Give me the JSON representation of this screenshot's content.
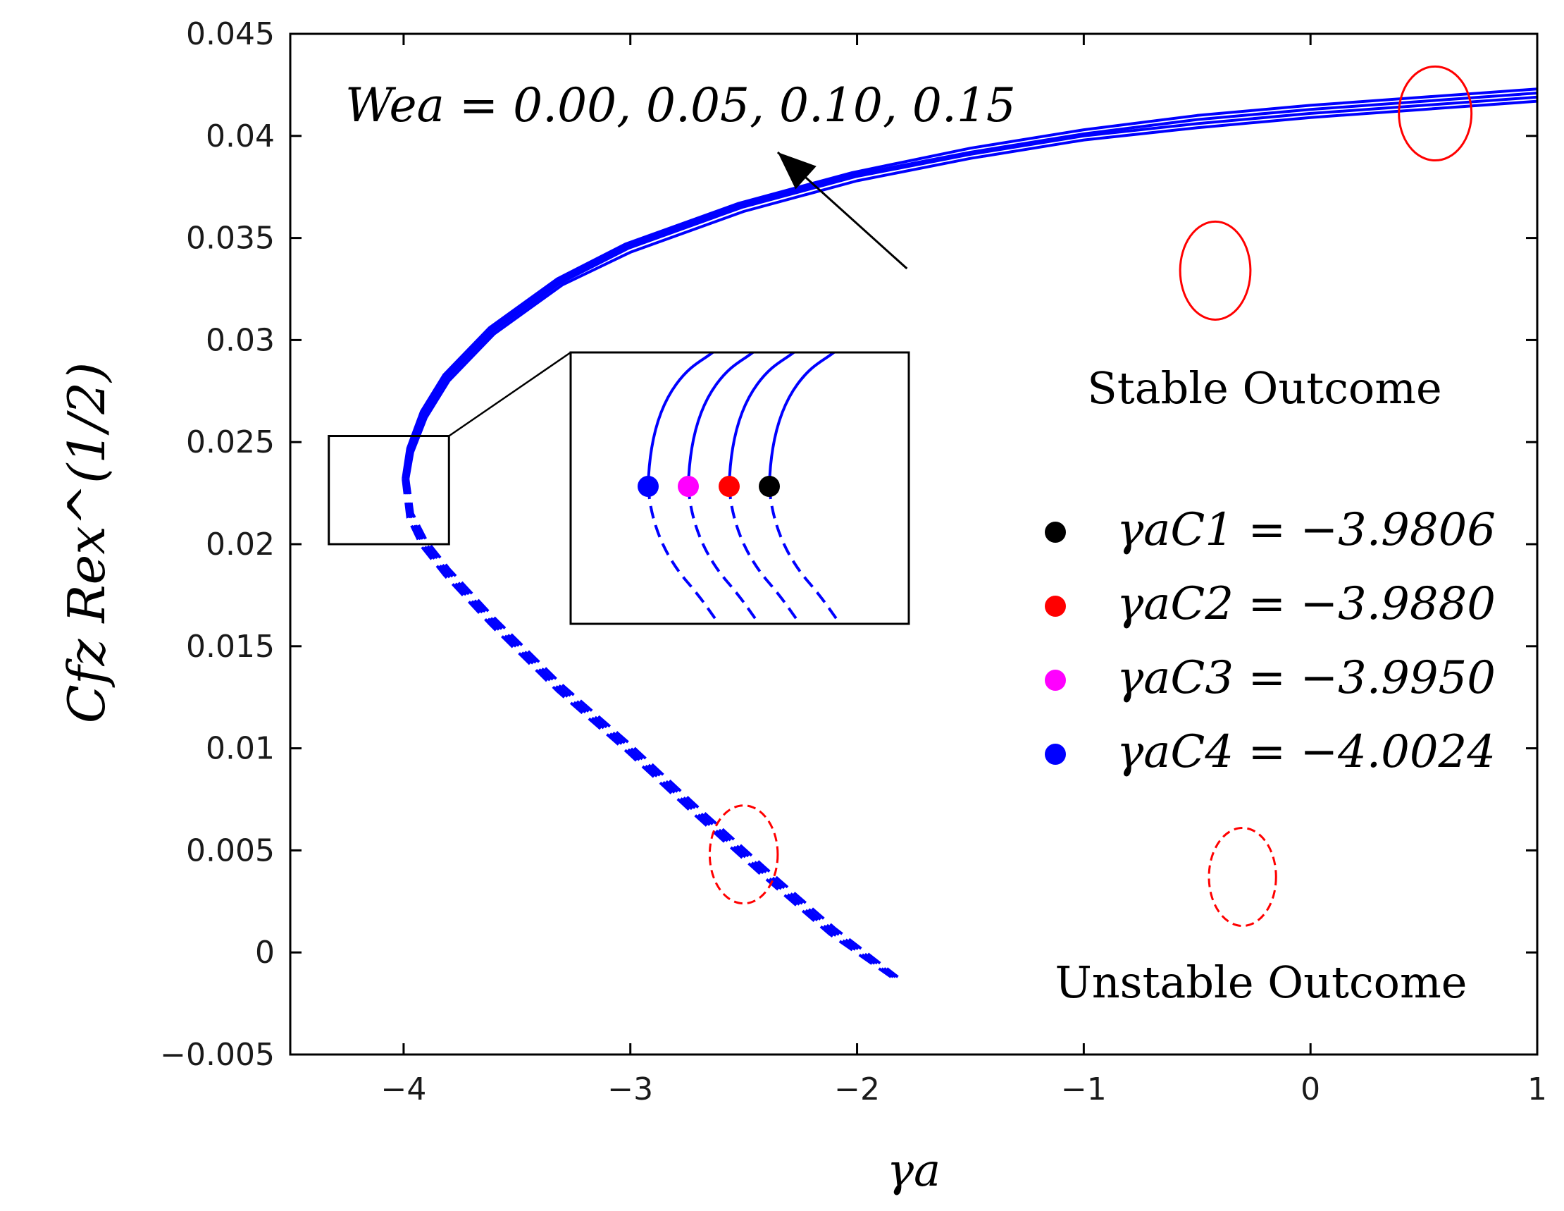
{
  "chart_data": {
    "type": "line",
    "title": "",
    "xlabel": "γa",
    "ylabel": "Cfz Rex^(1/2)",
    "xlim": [
      -4.5,
      1
    ],
    "ylim": [
      -0.005,
      0.045
    ],
    "x_ticks": [
      -4,
      -3,
      -2,
      -1,
      0,
      1
    ],
    "x_tick_labels": [
      "−4",
      "−3",
      "−2",
      "−1",
      "0",
      "1"
    ],
    "y_ticks": [
      -0.005,
      0,
      0.005,
      0.01,
      0.015,
      0.02,
      0.025,
      0.03,
      0.035,
      0.04,
      0.045
    ],
    "y_tick_labels": [
      "−0.005",
      "0",
      "0.005",
      "0.01",
      "0.015",
      "0.02",
      "0.025",
      "0.03",
      "0.035",
      "0.04",
      "0.045"
    ],
    "grid": false,
    "series": [
      {
        "name": "We_a = 0.00",
        "color": "#0000ff",
        "critical_point": {
          "x": -3.9806,
          "y": 0.0232
        },
        "upper_branch_style": "solid",
        "lower_branch_style": "dashed",
        "upper_branch": [
          [
            -3.9806,
            0.0232
          ],
          [
            -3.96,
            0.0245
          ],
          [
            -3.9,
            0.0262
          ],
          [
            -3.8,
            0.028
          ],
          [
            -3.6,
            0.0303
          ],
          [
            -3.3,
            0.0327
          ],
          [
            -3.0,
            0.0343
          ],
          [
            -2.5,
            0.0363
          ],
          [
            -2.0,
            0.0378
          ],
          [
            -1.5,
            0.0389
          ],
          [
            -1.0,
            0.0398
          ],
          [
            -0.5,
            0.0404
          ],
          [
            0.0,
            0.0409
          ],
          [
            0.5,
            0.0413
          ],
          [
            1.0,
            0.0417
          ]
        ],
        "lower_branch": [
          [
            -3.9806,
            0.0232
          ],
          [
            -3.96,
            0.0215
          ],
          [
            -3.9,
            0.0202
          ],
          [
            -3.8,
            0.0188
          ],
          [
            -3.6,
            0.0164
          ],
          [
            -3.3,
            0.0131
          ],
          [
            -3.0,
            0.0102
          ],
          [
            -2.7,
            0.0071
          ],
          [
            -2.4,
            0.0041
          ],
          [
            -2.1,
            0.0012
          ],
          [
            -1.82,
            -0.0012
          ]
        ]
      },
      {
        "name": "We_a = 0.05",
        "color": "#0000ff",
        "critical_point": {
          "x": -3.988,
          "y": 0.0232
        },
        "upper_branch_style": "solid",
        "lower_branch_style": "dashed",
        "upper_branch": [
          [
            -3.988,
            0.0232
          ],
          [
            -3.968,
            0.0246
          ],
          [
            -3.908,
            0.0263
          ],
          [
            -3.808,
            0.0281
          ],
          [
            -3.608,
            0.0304
          ],
          [
            -3.308,
            0.0328
          ],
          [
            -3.008,
            0.0345
          ],
          [
            -2.508,
            0.0365
          ],
          [
            -2.008,
            0.038
          ],
          [
            -1.5,
            0.0391
          ],
          [
            -1.0,
            0.04
          ],
          [
            -0.5,
            0.0406
          ],
          [
            0.0,
            0.0411
          ],
          [
            0.5,
            0.0415
          ],
          [
            1.0,
            0.0419
          ]
        ],
        "lower_branch": [
          [
            -3.988,
            0.0232
          ],
          [
            -3.968,
            0.0214
          ],
          [
            -3.908,
            0.0201
          ],
          [
            -3.808,
            0.0187
          ],
          [
            -3.608,
            0.0163
          ],
          [
            -3.308,
            0.013
          ],
          [
            -3.008,
            0.0101
          ],
          [
            -2.708,
            0.007
          ],
          [
            -2.408,
            0.004
          ],
          [
            -2.108,
            0.0011
          ],
          [
            -1.83,
            -0.0012
          ]
        ]
      },
      {
        "name": "We_a = 0.10",
        "color": "#0000ff",
        "critical_point": {
          "x": -3.995,
          "y": 0.0232
        },
        "upper_branch_style": "solid",
        "lower_branch_style": "dashed",
        "upper_branch": [
          [
            -3.995,
            0.0232
          ],
          [
            -3.975,
            0.0246
          ],
          [
            -3.915,
            0.0264
          ],
          [
            -3.815,
            0.0282
          ],
          [
            -3.615,
            0.0305
          ],
          [
            -3.315,
            0.0329
          ],
          [
            -3.015,
            0.0346
          ],
          [
            -2.515,
            0.0366
          ],
          [
            -2.015,
            0.0381
          ],
          [
            -1.5,
            0.0392
          ],
          [
            -1.0,
            0.0401
          ],
          [
            -0.5,
            0.0408
          ],
          [
            0.0,
            0.0413
          ],
          [
            0.5,
            0.0417
          ],
          [
            1.0,
            0.0421
          ]
        ],
        "lower_branch": [
          [
            -3.995,
            0.0232
          ],
          [
            -3.975,
            0.0214
          ],
          [
            -3.915,
            0.02
          ],
          [
            -3.815,
            0.0186
          ],
          [
            -3.615,
            0.0162
          ],
          [
            -3.315,
            0.0129
          ],
          [
            -3.015,
            0.01
          ],
          [
            -2.715,
            0.0069
          ],
          [
            -2.415,
            0.0039
          ],
          [
            -2.115,
            0.001
          ],
          [
            -1.84,
            -0.0012
          ]
        ]
      },
      {
        "name": "We_a = 0.15",
        "color": "#0000ff",
        "critical_point": {
          "x": -4.0024,
          "y": 0.0232
        },
        "upper_branch_style": "solid",
        "lower_branch_style": "dashed",
        "upper_branch": [
          [
            -4.0024,
            0.0232
          ],
          [
            -3.982,
            0.0247
          ],
          [
            -3.922,
            0.0265
          ],
          [
            -3.822,
            0.0283
          ],
          [
            -3.622,
            0.0306
          ],
          [
            -3.322,
            0.033
          ],
          [
            -3.022,
            0.0347
          ],
          [
            -2.522,
            0.0367
          ],
          [
            -2.022,
            0.0382
          ],
          [
            -1.5,
            0.0394
          ],
          [
            -1.0,
            0.0403
          ],
          [
            -0.5,
            0.041
          ],
          [
            0.0,
            0.0415
          ],
          [
            0.5,
            0.0419
          ],
          [
            1.0,
            0.0423
          ]
        ],
        "lower_branch": [
          [
            -4.0024,
            0.0232
          ],
          [
            -3.982,
            0.0213
          ],
          [
            -3.922,
            0.0199
          ],
          [
            -3.822,
            0.0185
          ],
          [
            -3.622,
            0.0161
          ],
          [
            -3.322,
            0.0128
          ],
          [
            -3.022,
            0.0099
          ],
          [
            -2.722,
            0.0068
          ],
          [
            -2.422,
            0.0038
          ],
          [
            -2.122,
            0.0009
          ],
          [
            -1.85,
            -0.0012
          ]
        ]
      }
    ],
    "legend": {
      "placement": "center-right",
      "entries": [
        {
          "label": "γaC1 = −3.9806",
          "color": "#000000"
        },
        {
          "label": "γaC2 = −3.9880",
          "color": "#ff0000"
        },
        {
          "label": "γaC3 = −3.9950",
          "color": "#ff00ff"
        },
        {
          "label": "γaC4 = −4.0024",
          "color": "#0000ff"
        }
      ]
    },
    "zoom_box": {
      "xlim": [
        -4.33,
        -3.8
      ],
      "ylim": [
        0.02,
        0.0253
      ]
    },
    "inset": {
      "shows": "zoomed critical points",
      "point_order_left_to_right": [
        "C4",
        "C3",
        "C2",
        "C1"
      ]
    },
    "annotations": {
      "we_label": "Wea = 0.00, 0.05, 0.10, 0.15",
      "arrow": {
        "from": [
          -1.78,
          0.0335
        ],
        "to": [
          -2.35,
          0.0392
        ]
      },
      "stable_label": "Stable Outcome",
      "unstable_label": "Unstable Outcome",
      "stable_ellipses": [
        {
          "cx": 0.55,
          "cy": 0.0411,
          "rx": 0.16,
          "ry": 0.0023,
          "style": "solid"
        },
        {
          "cx": -0.42,
          "cy": 0.0334,
          "rx": 0.155,
          "ry": 0.0024,
          "style": "solid"
        }
      ],
      "unstable_ellipses": [
        {
          "cx": -2.5,
          "cy": 0.0048,
          "rx": 0.15,
          "ry": 0.0024,
          "style": "dashed"
        },
        {
          "cx": -0.3,
          "cy": 0.0037,
          "rx": 0.148,
          "ry": 0.0024,
          "style": "dashed"
        }
      ]
    }
  }
}
